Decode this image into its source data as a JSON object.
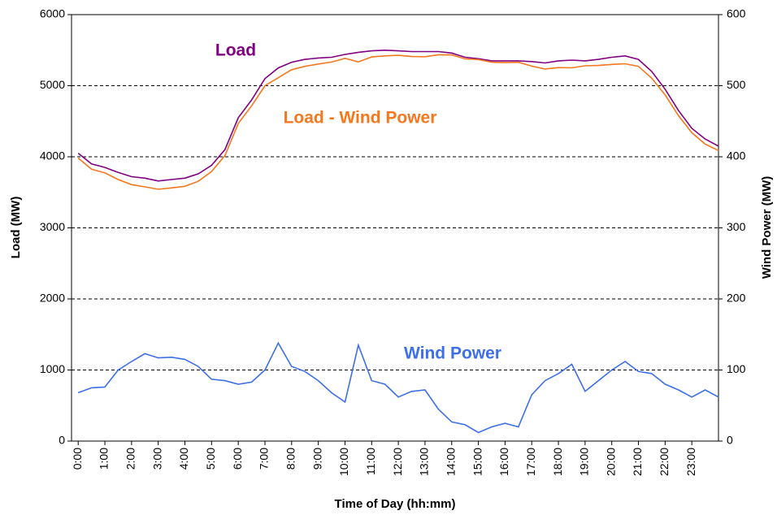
{
  "chart_data": {
    "type": "line",
    "x_label": "Time of Day (hh:mm)",
    "y_label": "Load (MW)",
    "y2_label": "Wind Power (MW)",
    "x": [
      0,
      0.5,
      1,
      1.5,
      2,
      2.5,
      3,
      3.5,
      4,
      4.5,
      5,
      5.5,
      6,
      6.5,
      7,
      7.5,
      8,
      8.5,
      9,
      9.5,
      10,
      10.5,
      11,
      11.5,
      12,
      12.5,
      13,
      13.5,
      14,
      14.5,
      15,
      15.5,
      16,
      16.5,
      17,
      17.5,
      18,
      18.5,
      19,
      19.5,
      20,
      20.5,
      21,
      21.5,
      22,
      22.5,
      23,
      23.5,
      24
    ],
    "xlim": [
      -0.25,
      24
    ],
    "xticks": [
      {
        "value": 0,
        "label": "0:00"
      },
      {
        "value": 1,
        "label": "1:00"
      },
      {
        "value": 2,
        "label": "2:00"
      },
      {
        "value": 3,
        "label": "3:00"
      },
      {
        "value": 4,
        "label": "4:00"
      },
      {
        "value": 5,
        "label": "5:00"
      },
      {
        "value": 6,
        "label": "6:00"
      },
      {
        "value": 7,
        "label": "7:00"
      },
      {
        "value": 8,
        "label": "8:00"
      },
      {
        "value": 9,
        "label": "9:00"
      },
      {
        "value": 10,
        "label": "10:00"
      },
      {
        "value": 11,
        "label": "11:00"
      },
      {
        "value": 12,
        "label": "12:00"
      },
      {
        "value": 13,
        "label": "13:00"
      },
      {
        "value": 14,
        "label": "14:00"
      },
      {
        "value": 15,
        "label": "15:00"
      },
      {
        "value": 16,
        "label": "16:00"
      },
      {
        "value": 17,
        "label": "17:00"
      },
      {
        "value": 18,
        "label": "18:00"
      },
      {
        "value": 19,
        "label": "19:00"
      },
      {
        "value": 20,
        "label": "20:00"
      },
      {
        "value": 21,
        "label": "21:00"
      },
      {
        "value": 22,
        "label": "22:00"
      },
      {
        "value": 23,
        "label": "23:00"
      }
    ],
    "ylim": [
      0,
      6000
    ],
    "yticks": [
      0,
      1000,
      2000,
      3000,
      4000,
      5000,
      6000
    ],
    "y2lim": [
      0,
      600
    ],
    "y2ticks": [
      0,
      100,
      200,
      300,
      400,
      500,
      600
    ],
    "grid": true,
    "series": [
      {
        "name": "Load",
        "color": "#800080",
        "values": [
          4050,
          3900,
          3850,
          3780,
          3720,
          3700,
          3660,
          3680,
          3700,
          3760,
          3880,
          4100,
          4550,
          4800,
          5100,
          5250,
          5330,
          5370,
          5390,
          5400,
          5440,
          5470,
          5490,
          5500,
          5490,
          5480,
          5480,
          5480,
          5460,
          5400,
          5380,
          5350,
          5350,
          5350,
          5340,
          5320,
          5350,
          5360,
          5350,
          5370,
          5400,
          5420,
          5370,
          5200,
          4950,
          4650,
          4400,
          4250,
          4150
        ]
      },
      {
        "name": "Load - Wind Power",
        "color": "#f5781e",
        "values": [
          3982,
          3825,
          3774,
          3680,
          3608,
          3577,
          3543,
          3562,
          3585,
          3655,
          3793,
          4015,
          4470,
          4717,
          5000,
          5112,
          5225,
          5272,
          5305,
          5332,
          5385,
          5335,
          5405,
          5420,
          5428,
          5410,
          5408,
          5435,
          5433,
          5377,
          5368,
          5330,
          5325,
          5330,
          5275,
          5235,
          5255,
          5252,
          5280,
          5285,
          5300,
          5308,
          5272,
          5105,
          4870,
          4578,
          4338,
          4178,
          4088
        ]
      },
      {
        "name": "Wind Power",
        "color": "#3d6fe8",
        "axis": "y2",
        "values": [
          68,
          75,
          76,
          100,
          112,
          123,
          117,
          118,
          115,
          105,
          87,
          85,
          80,
          83,
          100,
          138,
          105,
          98,
          85,
          68,
          55,
          135,
          85,
          80,
          62,
          70,
          72,
          45,
          27,
          23,
          12,
          20,
          25,
          20,
          65,
          85,
          95,
          108,
          70,
          85,
          100,
          112,
          98,
          95,
          80,
          72,
          62,
          72,
          62
        ]
      }
    ]
  }
}
